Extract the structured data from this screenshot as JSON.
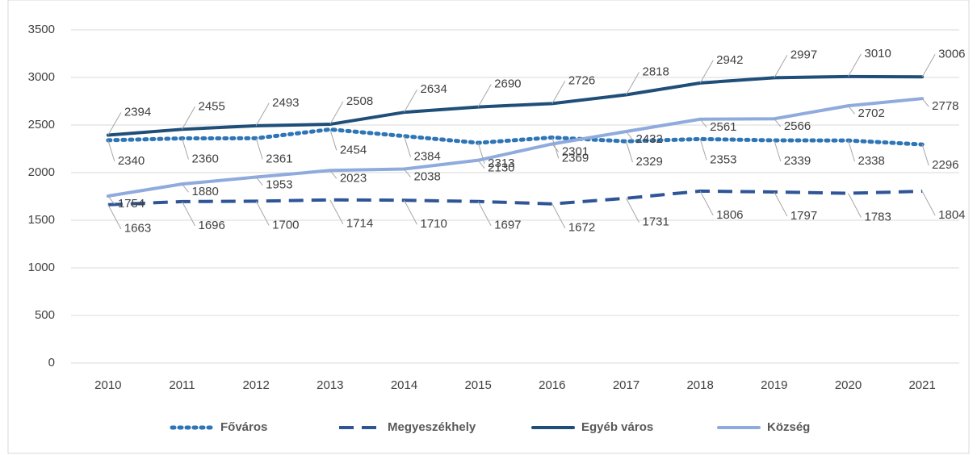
{
  "chart_data": {
    "type": "line",
    "categories": [
      "2010",
      "2011",
      "2012",
      "2013",
      "2014",
      "2015",
      "2016",
      "2017",
      "2018",
      "2019",
      "2020",
      "2021"
    ],
    "series": [
      {
        "name": "Főváros",
        "color": "#2e75b6",
        "dash": "dotted",
        "values": [
          2340,
          2360,
          2361,
          2454,
          2384,
          2313,
          2369,
          2329,
          2353,
          2339,
          2338,
          2296
        ]
      },
      {
        "name": "Megyeszékhely",
        "color": "#2f5597",
        "dash": "dashed",
        "values": [
          1663,
          1696,
          1700,
          1714,
          1710,
          1697,
          1672,
          1731,
          1806,
          1797,
          1783,
          1804
        ]
      },
      {
        "name": "Egyéb város",
        "color": "#1f4e79",
        "dash": "solid",
        "values": [
          2394,
          2455,
          2493,
          2508,
          2634,
          2690,
          2726,
          2818,
          2942,
          2997,
          3010,
          3006
        ]
      },
      {
        "name": "Község",
        "color": "#8faadc",
        "dash": "solid",
        "values": [
          1754,
          1880,
          1953,
          2023,
          2038,
          2130,
          2301,
          2432,
          2561,
          2566,
          2702,
          2778
        ]
      }
    ],
    "ylim": [
      0,
      3500
    ],
    "yticks": [
      0,
      500,
      1000,
      1500,
      2000,
      2500,
      3000,
      3500
    ],
    "grid": true,
    "legend": "bottom"
  }
}
